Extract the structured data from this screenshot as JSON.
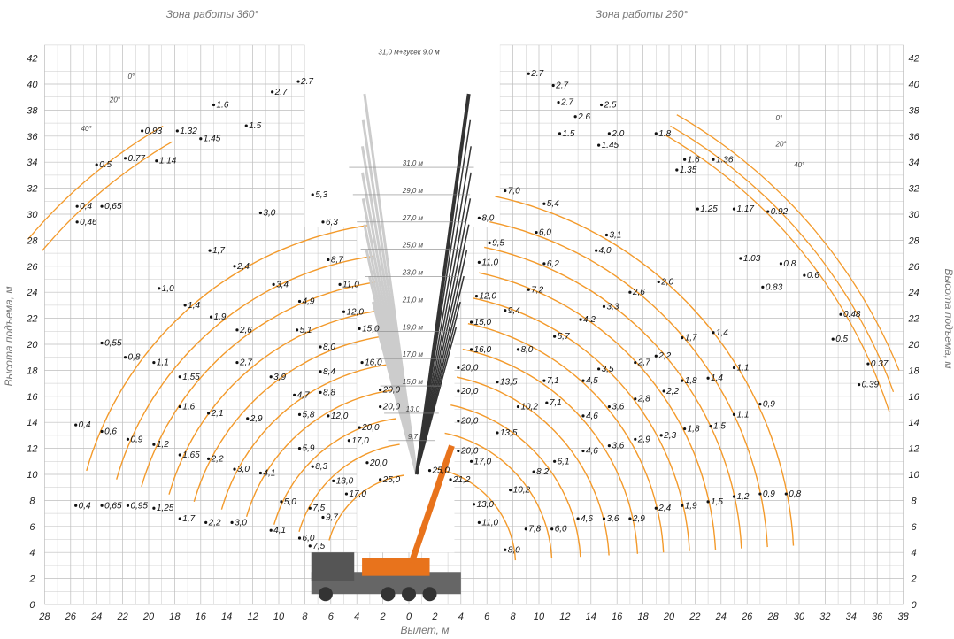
{
  "titles": {
    "left_zone": "Зона работы 360°",
    "right_zone": "Зона работы 260°",
    "x_axis": "Вылет, м",
    "y_axis_left": "Высота подъема, м",
    "y_axis_right": "Высота подъема, м"
  },
  "x_ticks_left": [
    "28",
    "26",
    "24",
    "22",
    "20",
    "18",
    "16",
    "14",
    "12",
    "10",
    "8",
    "6",
    "4",
    "2"
  ],
  "x_ticks_right": [
    "0",
    "2",
    "4",
    "6",
    "8",
    "10",
    "12",
    "14",
    "16",
    "18",
    "20",
    "22",
    "24",
    "26",
    "28",
    "30",
    "32",
    "34",
    "36",
    "38"
  ],
  "y_ticks": [
    "0",
    "2",
    "4",
    "6",
    "8",
    "10",
    "12",
    "14",
    "16",
    "18",
    "20",
    "22",
    "24",
    "26",
    "28",
    "30",
    "32",
    "34",
    "36",
    "38",
    "40",
    "42"
  ],
  "jib_angles_left": [
    "0°",
    "20°",
    "40°"
  ],
  "jib_angles_right": [
    "0°",
    "20°",
    "40°"
  ],
  "top_dimension": "31,0 м+гусек 9,0 м",
  "boom_lengths": [
    "31,0 м",
    "29,0 м",
    "27,0 м",
    "25,0 м",
    "23,0 м",
    "21,0 м",
    "19,0 м",
    "17,0 м",
    "15,0 м",
    "13,0",
    "9,7"
  ],
  "colors": {
    "curve": "#f39a2b",
    "grid": "#bdbdbd",
    "crane": "#e8731c",
    "boom_ghost": "#cccccc"
  },
  "jib_loads_left": [
    {
      "v": "2.7",
      "x": -8.5,
      "y": 40.2
    },
    {
      "v": "2.7",
      "x": -10.5,
      "y": 39.4
    },
    {
      "v": "1.6",
      "x": -15,
      "y": 38.4
    },
    {
      "v": "1.5",
      "x": -12.5,
      "y": 36.8
    },
    {
      "v": "1.32",
      "x": -17.8,
      "y": 36.4
    },
    {
      "v": "1.45",
      "x": -16,
      "y": 35.8
    },
    {
      "v": "0.93",
      "x": -20.5,
      "y": 36.4
    },
    {
      "v": "0.77",
      "x": -21.8,
      "y": 34.3
    },
    {
      "v": "1.14",
      "x": -19.4,
      "y": 34.1
    },
    {
      "v": "0.5",
      "x": -24,
      "y": 33.8
    },
    {
      "v": "0,4",
      "x": -25.5,
      "y": 30.6
    },
    {
      "v": "0,65",
      "x": -23.6,
      "y": 30.6
    },
    {
      "v": "0,46",
      "x": -25.5,
      "y": 29.4
    }
  ],
  "jib_loads_right": [
    {
      "v": "2.7",
      "x": 9.2,
      "y": 40.8
    },
    {
      "v": "2.7",
      "x": 11.1,
      "y": 39.9
    },
    {
      "v": "2.7",
      "x": 11.5,
      "y": 38.6
    },
    {
      "v": "2.5",
      "x": 14.8,
      "y": 38.4
    },
    {
      "v": "2.6",
      "x": 12.8,
      "y": 37.5
    },
    {
      "v": "1.5",
      "x": 11.6,
      "y": 36.2
    },
    {
      "v": "2.0",
      "x": 15.4,
      "y": 36.2
    },
    {
      "v": "1.45",
      "x": 14.6,
      "y": 35.3
    },
    {
      "v": "1.8",
      "x": 19,
      "y": 36.2
    },
    {
      "v": "1.6",
      "x": 21.2,
      "y": 34.2
    },
    {
      "v": "1.36",
      "x": 23.4,
      "y": 34.2
    },
    {
      "v": "1.35",
      "x": 20.6,
      "y": 33.4
    },
    {
      "v": "1.25",
      "x": 22.2,
      "y": 30.4
    },
    {
      "v": "1.17",
      "x": 25,
      "y": 30.4
    },
    {
      "v": "0.92",
      "x": 27.6,
      "y": 30.2
    },
    {
      "v": "1.03",
      "x": 25.5,
      "y": 26.6
    },
    {
      "v": "0.8",
      "x": 28.6,
      "y": 26.2
    },
    {
      "v": "0.83",
      "x": 27.2,
      "y": 24.4
    },
    {
      "v": "0.6",
      "x": 30.4,
      "y": 25.3
    },
    {
      "v": "0.48",
      "x": 33.2,
      "y": 22.3
    },
    {
      "v": "0.5",
      "x": 32.6,
      "y": 20.4
    },
    {
      "v": "0.37",
      "x": 35.3,
      "y": 18.5
    },
    {
      "v": "0.39",
      "x": 34.6,
      "y": 16.9
    }
  ],
  "boom_loads_left": [
    {
      "v": "5,3",
      "x": -7.4,
      "y": 31.5
    },
    {
      "v": "3,0",
      "x": -11.4,
      "y": 30.1
    },
    {
      "v": "6,3",
      "x": -6.6,
      "y": 29.4
    },
    {
      "v": "1,7",
      "x": -15.3,
      "y": 27.2
    },
    {
      "v": "8,7",
      "x": -6.2,
      "y": 26.5
    },
    {
      "v": "2,4",
      "x": -13.4,
      "y": 26.0
    },
    {
      "v": "3,4",
      "x": -10.4,
      "y": 24.6
    },
    {
      "v": "1,0",
      "x": -19.2,
      "y": 24.3
    },
    {
      "v": "11,0",
      "x": -5.3,
      "y": 24.6
    },
    {
      "v": "4,9",
      "x": -8.4,
      "y": 23.3
    },
    {
      "v": "1,4",
      "x": -17.2,
      "y": 23.0
    },
    {
      "v": "12,0",
      "x": -5.0,
      "y": 22.5
    },
    {
      "v": "1,9",
      "x": -15.2,
      "y": 22.1
    },
    {
      "v": "2,6",
      "x": -13.2,
      "y": 21.1
    },
    {
      "v": "5,1",
      "x": -8.6,
      "y": 21.1
    },
    {
      "v": "15,0",
      "x": -3.8,
      "y": 21.2
    },
    {
      "v": "0,55",
      "x": -23.6,
      "y": 20.1
    },
    {
      "v": "8,0",
      "x": -6.8,
      "y": 19.8
    },
    {
      "v": "0,8",
      "x": -21.8,
      "y": 19.0
    },
    {
      "v": "1,1",
      "x": -19.6,
      "y": 18.6
    },
    {
      "v": "16,0",
      "x": -3.6,
      "y": 18.6
    },
    {
      "v": "2,7",
      "x": -13.2,
      "y": 18.6
    },
    {
      "v": "8,4",
      "x": -6.8,
      "y": 17.9
    },
    {
      "v": "1,55",
      "x": -17.6,
      "y": 17.5
    },
    {
      "v": "3,9",
      "x": -10.6,
      "y": 17.5
    },
    {
      "v": "8,8",
      "x": -6.8,
      "y": 16.3
    },
    {
      "v": "20,0",
      "x": -2.2,
      "y": 16.5
    },
    {
      "v": "4,7",
      "x": -8.8,
      "y": 16.1
    },
    {
      "v": "1,6",
      "x": -17.6,
      "y": 15.2
    },
    {
      "v": "2,1",
      "x": -15.4,
      "y": 14.7
    },
    {
      "v": "20,0",
      "x": -2.2,
      "y": 15.2
    },
    {
      "v": "2,9",
      "x": -12.4,
      "y": 14.3
    },
    {
      "v": "12,0",
      "x": -6.2,
      "y": 14.5
    },
    {
      "v": "5,8",
      "x": -8.4,
      "y": 14.6
    },
    {
      "v": "0,4",
      "x": -25.6,
      "y": 13.8
    },
    {
      "v": "0,6",
      "x": -23.6,
      "y": 13.3
    },
    {
      "v": "20,0",
      "x": -3.8,
      "y": 13.6
    },
    {
      "v": "0,9",
      "x": -21.6,
      "y": 12.7
    },
    {
      "v": "17,0",
      "x": -4.6,
      "y": 12.6
    },
    {
      "v": "1,2",
      "x": -19.6,
      "y": 12.3
    },
    {
      "v": "5,9",
      "x": -8.4,
      "y": 12.0
    },
    {
      "v": "1,65",
      "x": -17.6,
      "y": 11.5
    },
    {
      "v": "2,2",
      "x": -15.4,
      "y": 11.2
    },
    {
      "v": "20,0",
      "x": -3.2,
      "y": 10.9
    },
    {
      "v": "8,3",
      "x": -7.4,
      "y": 10.6
    },
    {
      "v": "3,0",
      "x": -13.4,
      "y": 10.4
    },
    {
      "v": "4,1",
      "x": -11.4,
      "y": 10.1
    },
    {
      "v": "25,0",
      "x": -2.2,
      "y": 9.6
    },
    {
      "v": "13,0",
      "x": -5.8,
      "y": 9.5
    },
    {
      "v": "17,0",
      "x": -4.8,
      "y": 8.5
    },
    {
      "v": "5,0",
      "x": -9.8,
      "y": 7.9
    },
    {
      "v": "0,4",
      "x": -25.6,
      "y": 7.6
    },
    {
      "v": "0,65",
      "x": -23.6,
      "y": 7.6
    },
    {
      "v": "0,95",
      "x": -21.6,
      "y": 7.6
    },
    {
      "v": "1,25",
      "x": -19.6,
      "y": 7.4
    },
    {
      "v": "7,5",
      "x": -7.6,
      "y": 7.4
    },
    {
      "v": "1,7",
      "x": -17.6,
      "y": 6.6
    },
    {
      "v": "2,2",
      "x": -15.6,
      "y": 6.3
    },
    {
      "v": "3,0",
      "x": -13.6,
      "y": 6.3
    },
    {
      "v": "9,7",
      "x": -6.6,
      "y": 6.7
    },
    {
      "v": "4,1",
      "x": -10.6,
      "y": 5.7
    },
    {
      "v": "6,0",
      "x": -8.4,
      "y": 5.1
    },
    {
      "v": "7,5",
      "x": -7.6,
      "y": 4.5
    }
  ],
  "boom_loads_right": [
    {
      "v": "7,0",
      "x": 7.4,
      "y": 31.8
    },
    {
      "v": "5,4",
      "x": 10.4,
      "y": 30.8
    },
    {
      "v": "8,0",
      "x": 5.4,
      "y": 29.7
    },
    {
      "v": "6,0",
      "x": 9.8,
      "y": 28.6
    },
    {
      "v": "3,1",
      "x": 15.2,
      "y": 28.4
    },
    {
      "v": "9,5",
      "x": 6.2,
      "y": 27.8
    },
    {
      "v": "4,0",
      "x": 14.4,
      "y": 27.2
    },
    {
      "v": "6,2",
      "x": 10.4,
      "y": 26.2
    },
    {
      "v": "11,0",
      "x": 5.4,
      "y": 26.3
    },
    {
      "v": "2,0",
      "x": 19.2,
      "y": 24.8
    },
    {
      "v": "7,2",
      "x": 9.2,
      "y": 24.2
    },
    {
      "v": "2,6",
      "x": 17.0,
      "y": 24.0
    },
    {
      "v": "12,0",
      "x": 5.2,
      "y": 23.7
    },
    {
      "v": "3,3",
      "x": 15.0,
      "y": 22.9
    },
    {
      "v": "9,4",
      "x": 7.4,
      "y": 22.6
    },
    {
      "v": "4,2",
      "x": 13.2,
      "y": 21.9
    },
    {
      "v": "15,0",
      "x": 4.8,
      "y": 21.7
    },
    {
      "v": "1,4",
      "x": 23.4,
      "y": 20.9
    },
    {
      "v": "1,7",
      "x": 21.0,
      "y": 20.5
    },
    {
      "v": "5,7",
      "x": 11.2,
      "y": 20.6
    },
    {
      "v": "16,0",
      "x": 4.8,
      "y": 19.6
    },
    {
      "v": "8,0",
      "x": 8.4,
      "y": 19.6
    },
    {
      "v": "2,2",
      "x": 19.0,
      "y": 19.1
    },
    {
      "v": "2,7",
      "x": 17.4,
      "y": 18.6
    },
    {
      "v": "3,5",
      "x": 14.6,
      "y": 18.1
    },
    {
      "v": "1,1",
      "x": 25.0,
      "y": 18.2
    },
    {
      "v": "20,0",
      "x": 3.8,
      "y": 18.2
    },
    {
      "v": "1,4",
      "x": 23.0,
      "y": 17.4
    },
    {
      "v": "1,8",
      "x": 21.0,
      "y": 17.2
    },
    {
      "v": "4,5",
      "x": 13.4,
      "y": 17.2
    },
    {
      "v": "7,1",
      "x": 10.4,
      "y": 17.2
    },
    {
      "v": "20,0",
      "x": 3.8,
      "y": 16.4
    },
    {
      "v": "13,5",
      "x": 6.8,
      "y": 17.1
    },
    {
      "v": "2,2",
      "x": 19.6,
      "y": 16.4
    },
    {
      "v": "2,8",
      "x": 17.4,
      "y": 15.8
    },
    {
      "v": "3,6",
      "x": 15.4,
      "y": 15.2
    },
    {
      "v": "7,1",
      "x": 10.6,
      "y": 15.5
    },
    {
      "v": "10,2",
      "x": 8.4,
      "y": 15.2
    },
    {
      "v": "0,9",
      "x": 27.0,
      "y": 15.4
    },
    {
      "v": "1,1",
      "x": 25.0,
      "y": 14.6
    },
    {
      "v": "4,6",
      "x": 13.4,
      "y": 14.5
    },
    {
      "v": "20,0",
      "x": 3.8,
      "y": 14.1
    },
    {
      "v": "1,5",
      "x": 23.2,
      "y": 13.7
    },
    {
      "v": "1,8",
      "x": 21.2,
      "y": 13.5
    },
    {
      "v": "13,5",
      "x": 6.8,
      "y": 13.2
    },
    {
      "v": "2,3",
      "x": 19.4,
      "y": 13.0
    },
    {
      "v": "2,9",
      "x": 17.4,
      "y": 12.7
    },
    {
      "v": "3,6",
      "x": 15.4,
      "y": 12.2
    },
    {
      "v": "4,6",
      "x": 13.4,
      "y": 11.8
    },
    {
      "v": "20,0",
      "x": 3.8,
      "y": 11.8
    },
    {
      "v": "17,0",
      "x": 4.8,
      "y": 11.0
    },
    {
      "v": "6,1",
      "x": 11.2,
      "y": 11.0
    },
    {
      "v": "8,2",
      "x": 9.6,
      "y": 10.2
    },
    {
      "v": "25,0",
      "x": 1.6,
      "y": 10.3
    },
    {
      "v": "21,2",
      "x": 3.2,
      "y": 9.6
    },
    {
      "v": "10,2",
      "x": 7.8,
      "y": 8.8
    },
    {
      "v": "0,8",
      "x": 29.0,
      "y": 8.5
    },
    {
      "v": "0,9",
      "x": 27.0,
      "y": 8.5
    },
    {
      "v": "1,2",
      "x": 25.0,
      "y": 8.3
    },
    {
      "v": "1,5",
      "x": 23.0,
      "y": 7.9
    },
    {
      "v": "1,9",
      "x": 21.0,
      "y": 7.6
    },
    {
      "v": "2,4",
      "x": 19.0,
      "y": 7.4
    },
    {
      "v": "13,0",
      "x": 5.0,
      "y": 7.7
    },
    {
      "v": "2,9",
      "x": 17.0,
      "y": 6.6
    },
    {
      "v": "3,6",
      "x": 15.0,
      "y": 6.6
    },
    {
      "v": "4,6",
      "x": 13.0,
      "y": 6.6
    },
    {
      "v": "11,0",
      "x": 5.4,
      "y": 6.3
    },
    {
      "v": "7,8",
      "x": 9.0,
      "y": 5.8
    },
    {
      "v": "6,0",
      "x": 11.0,
      "y": 5.8
    },
    {
      "v": "8,0",
      "x": 7.4,
      "y": 4.2
    }
  ]
}
